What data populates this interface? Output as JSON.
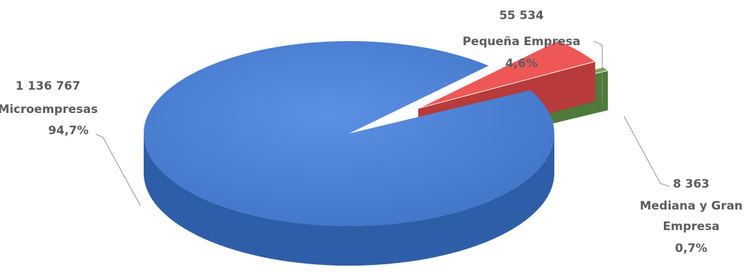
{
  "chart_data": {
    "type": "pie",
    "style": "3d-exploded",
    "title": "",
    "slices": [
      {
        "value": 1136767,
        "value_label": "1 136 767",
        "name": "Microempresas",
        "percent": 94.7,
        "percent_label": "94,7%",
        "color": "#4a7fd4",
        "side_color": "#2f5ea8"
      },
      {
        "value": 55534,
        "value_label": "55 534",
        "name": "Pequeña Empresa",
        "percent": 4.6,
        "percent_label": "4,6%",
        "color": "#ef5757",
        "side_color": "#b83a3a"
      },
      {
        "value": 8363,
        "value_label": "8 363",
        "name": "Mediana y Gran Empresa",
        "name_lines": [
          "Mediana y Gran",
          "Empresa"
        ],
        "percent": 0.7,
        "percent_label": "0,7%",
        "color": "#7aa55a",
        "side_color": "#4f7a3a"
      }
    ]
  }
}
